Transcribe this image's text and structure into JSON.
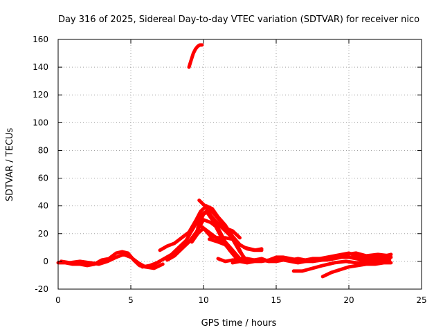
{
  "chart_data": {
    "type": "line",
    "title": "Day 316 of 2025, Sidereal Day-to-day VTEC variation (SDTVAR) for receiver nico",
    "xlabel": "GPS time / hours",
    "ylabel": "SDTVAR / TECUs",
    "xlim": [
      0,
      25
    ],
    "ylim": [
      -20,
      160
    ],
    "xticks": [
      0,
      5,
      10,
      15,
      20,
      25
    ],
    "yticks": [
      -20,
      0,
      20,
      40,
      60,
      80,
      100,
      120,
      140,
      160
    ],
    "grid": true,
    "legend": "none",
    "color": "#ff0000",
    "series": [
      {
        "name": "trace-1",
        "x": [
          0,
          0.5,
          1,
          1.5,
          2,
          2.5,
          3,
          3.5,
          4,
          4.4,
          4.8,
          5.2,
          5.6,
          6,
          6.5,
          7
        ],
        "y": [
          -1,
          -1,
          -2,
          -2,
          -3,
          -2,
          1,
          2,
          6,
          7,
          6,
          1,
          -3,
          -4,
          -3,
          0
        ]
      },
      {
        "name": "trace-2",
        "x": [
          0.2,
          0.8,
          1.5,
          2.2,
          2.8,
          3.4,
          4,
          4.5,
          5,
          5.5,
          6,
          6.6,
          7.2
        ],
        "y": [
          0,
          -1,
          0,
          -1,
          -2,
          0,
          3,
          5,
          3,
          -1,
          -4,
          -5,
          -2
        ]
      },
      {
        "name": "trace-3",
        "x": [
          5.8,
          6.3,
          6.8,
          7.3,
          7.8,
          8.3,
          8.8,
          9.3,
          9.8,
          10.2,
          10.6,
          11,
          11.4,
          11.8,
          12.2,
          12.6
        ],
        "y": [
          -4,
          -3,
          -1,
          2,
          5,
          10,
          15,
          24,
          33,
          36,
          30,
          22,
          14,
          8,
          3,
          1
        ]
      },
      {
        "name": "trace-4",
        "x": [
          7,
          7.5,
          8,
          8.5,
          9,
          9.5,
          9.8,
          10.2,
          10.6,
          11,
          11.5,
          12,
          12.5,
          13,
          13.5,
          14
        ],
        "y": [
          8,
          11,
          13,
          17,
          21,
          30,
          36,
          40,
          38,
          32,
          26,
          18,
          12,
          9,
          8,
          9
        ]
      },
      {
        "name": "trace-5",
        "x": [
          7.5,
          8,
          8.5,
          9,
          9.5,
          10,
          10.5,
          11,
          11.5,
          12
        ],
        "y": [
          1,
          4,
          9,
          14,
          21,
          30,
          28,
          24,
          14,
          8
        ]
      },
      {
        "name": "trace-6",
        "x": [
          9.5,
          10,
          10.5,
          11,
          11.5,
          12,
          12.5,
          13
        ],
        "y": [
          28,
          24,
          18,
          17,
          17,
          16,
          7,
          0
        ]
      },
      {
        "name": "trace-7",
        "x": [
          9.6,
          10,
          10.5,
          11,
          11.5,
          12,
          12.5
        ],
        "y": [
          24,
          34,
          37,
          31,
          24,
          22,
          17
        ]
      },
      {
        "name": "trace-8",
        "x": [
          9.7,
          10.1,
          10.5,
          11,
          11.5,
          12,
          12.4,
          12.7
        ],
        "y": [
          44,
          40,
          33,
          27,
          22,
          17,
          10,
          4
        ]
      },
      {
        "name": "trace-9",
        "x": [
          9.2,
          9.6,
          10,
          10.5,
          11,
          11.5,
          12,
          12.5
        ],
        "y": [
          14,
          20,
          24,
          20,
          16,
          13,
          8,
          2
        ]
      },
      {
        "name": "trace-10",
        "x": [
          10.4,
          11,
          11.5,
          12,
          12.5,
          13
        ],
        "y": [
          16,
          14,
          12,
          6,
          2,
          1
        ]
      },
      {
        "name": "trace-11",
        "x": [
          11,
          11.5,
          12,
          12.5,
          13,
          13.5,
          14,
          14.5,
          15,
          15.5,
          16,
          16.5,
          17,
          17.5,
          18
        ],
        "y": [
          2,
          0,
          1,
          1,
          0,
          1,
          1,
          0,
          1,
          2,
          1,
          2,
          1,
          2,
          2
        ]
      },
      {
        "name": "trace-12",
        "x": [
          12,
          12.5,
          13,
          13.5,
          14,
          14.5,
          15,
          15.5,
          16,
          16.5,
          17,
          17.5,
          18,
          18.5,
          19,
          19.5,
          20,
          20.5,
          21,
          21.5,
          22,
          22.5,
          22.9
        ],
        "y": [
          -1,
          0,
          -1,
          0,
          0,
          1,
          3,
          3,
          2,
          1,
          0,
          1,
          2,
          3,
          4,
          5,
          6,
          4,
          3,
          2,
          3,
          4,
          5
        ]
      },
      {
        "name": "trace-13",
        "x": [
          12.5,
          13,
          13.5,
          14,
          14.5,
          15,
          15.5,
          16,
          16.5,
          17,
          17.5,
          18,
          18.5,
          19,
          19.5,
          20,
          20.5,
          21,
          21.5,
          22,
          22.5,
          22.9
        ],
        "y": [
          2,
          2,
          1,
          2,
          0,
          0,
          1,
          0,
          -1,
          0,
          0,
          1,
          1,
          2,
          3,
          3,
          2,
          1,
          1,
          2,
          2,
          3
        ]
      },
      {
        "name": "trace-14",
        "x": [
          16.2,
          16.8,
          17.5,
          18.2,
          19,
          19.8,
          20.5,
          21.2,
          22,
          22.8
        ],
        "y": [
          -7,
          -7,
          -5,
          -3,
          -1,
          0,
          -1,
          -1,
          0,
          1
        ]
      },
      {
        "name": "trace-15",
        "x": [
          18.2,
          18.8,
          19.4,
          20,
          20.6,
          21.2,
          21.8,
          22.4,
          22.9
        ],
        "y": [
          -11,
          -8,
          -6,
          -4,
          -3,
          -2,
          -2,
          -1,
          -1
        ]
      },
      {
        "name": "trace-16",
        "x": [
          17.5,
          18.2,
          19,
          19.8,
          20.5,
          21.2,
          22,
          22.8
        ],
        "y": [
          0,
          1,
          3,
          5,
          6,
          4,
          5,
          4
        ]
      },
      {
        "name": "trace-17",
        "x": [
          12.8,
          13.2,
          13.6,
          14
        ],
        "y": [
          10,
          9,
          8,
          8
        ]
      },
      {
        "name": "trace-18",
        "x": [
          9.0,
          9.15,
          9.3,
          9.45,
          9.6,
          9.75,
          9.9
        ],
        "y": [
          140,
          145,
          150,
          153,
          155,
          156,
          156
        ]
      }
    ]
  }
}
